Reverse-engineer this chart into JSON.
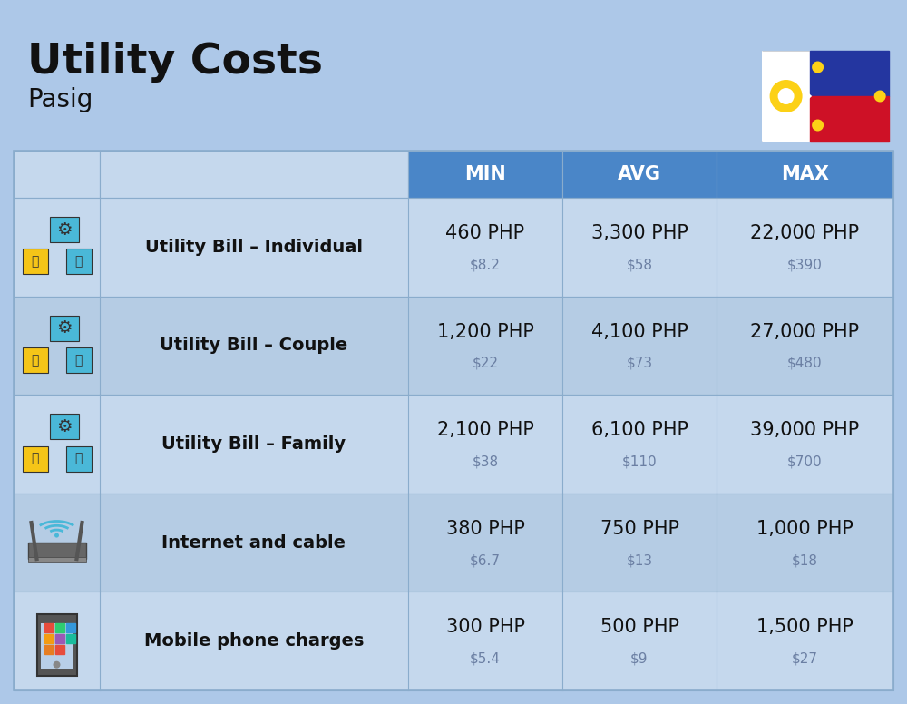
{
  "title": "Utility Costs",
  "subtitle": "Pasig",
  "background_color": "#adc8e8",
  "header_color": "#4a86c8",
  "header_text_color": "#ffffff",
  "row_color_even": "#c5d8ed",
  "row_color_odd": "#b5cce4",
  "cell_border_color": "#8aaccc",
  "col_headers": [
    "MIN",
    "AVG",
    "MAX"
  ],
  "rows": [
    {
      "label": "Utility Bill – Individual",
      "icon": "🔌",
      "min_php": "460 PHP",
      "min_usd": "$8.2",
      "avg_php": "3,300 PHP",
      "avg_usd": "$58",
      "max_php": "22,000 PHP",
      "max_usd": "$390"
    },
    {
      "label": "Utility Bill – Couple",
      "icon": "🔌",
      "min_php": "1,200 PHP",
      "min_usd": "$22",
      "avg_php": "4,100 PHP",
      "avg_usd": "$73",
      "max_php": "27,000 PHP",
      "max_usd": "$480"
    },
    {
      "label": "Utility Bill – Family",
      "icon": "🔌",
      "min_php": "2,100 PHP",
      "min_usd": "$38",
      "avg_php": "6,100 PHP",
      "avg_usd": "$110",
      "max_php": "39,000 PHP",
      "max_usd": "$700"
    },
    {
      "label": "Internet and cable",
      "icon": "📶",
      "min_php": "380 PHP",
      "min_usd": "$6.7",
      "avg_php": "750 PHP",
      "avg_usd": "$13",
      "max_php": "1,000 PHP",
      "max_usd": "$18"
    },
    {
      "label": "Mobile phone charges",
      "icon": "📱",
      "min_php": "300 PHP",
      "min_usd": "$5.4",
      "avg_php": "500 PHP",
      "avg_usd": "$9",
      "max_php": "1,500 PHP",
      "max_usd": "$27"
    }
  ],
  "title_fontsize": 34,
  "subtitle_fontsize": 20,
  "header_fontsize": 15,
  "label_fontsize": 14,
  "value_fontsize": 15,
  "usd_fontsize": 11,
  "icon_fontsize": 28
}
